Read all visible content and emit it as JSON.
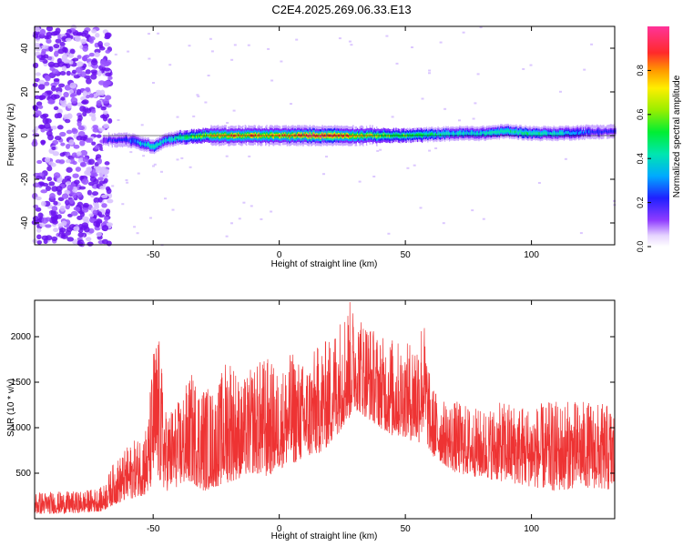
{
  "page_title": "C2E4.2025.269.06.33.E13",
  "chart_data": [
    {
      "type": "heatmap",
      "name": "spectrogram",
      "xlabel": "Height of straight line (km)",
      "ylabel": "Frequency (Hz)",
      "xlim": [
        -97,
        133
      ],
      "ylim": [
        -50,
        50
      ],
      "x_ticks": [
        -50,
        0,
        50,
        100
      ],
      "y_ticks": [
        -40,
        -20,
        0,
        20,
        40
      ],
      "colorbar": {
        "label": "Normalized spectral amplitude",
        "range": [
          0,
          1
        ],
        "ticks": [
          "0.0",
          "0.2",
          "0.4",
          "0.6",
          "0.8"
        ]
      },
      "ridge": {
        "description_free": true,
        "x": [
          -70,
          -60,
          -50,
          -45,
          -40,
          -30,
          -20,
          -10,
          0,
          10,
          20,
          30,
          40,
          50,
          60,
          70,
          80,
          90,
          100,
          110,
          120,
          133
        ],
        "freq": [
          -2,
          -2,
          -5,
          -2,
          -1,
          0,
          0,
          0,
          0,
          0,
          0,
          0,
          0,
          0,
          0.5,
          1,
          1,
          2,
          1,
          1,
          1.5,
          2
        ],
        "amplitude": [
          0.3,
          0.4,
          0.6,
          0.5,
          0.6,
          0.8,
          0.9,
          0.9,
          0.9,
          1.0,
          1.0,
          0.85,
          0.75,
          0.7,
          0.6,
          0.55,
          0.55,
          0.6,
          0.6,
          0.55,
          0.4,
          0.35
        ]
      }
    },
    {
      "type": "line",
      "name": "snr",
      "xlabel": "Height of straight line (km)",
      "ylabel": "SNR (10 * v/v)",
      "xlim": [
        -97,
        133
      ],
      "ylim": [
        0,
        2400
      ],
      "x_ticks": [
        -50,
        0,
        50,
        100
      ],
      "y_ticks": [
        500,
        1000,
        1500,
        2000
      ],
      "color": "#ee3333",
      "envelope": {
        "x": [
          -97,
          -80,
          -70,
          -66,
          -60,
          -56,
          -52,
          -50,
          -48,
          -45,
          -40,
          -35,
          -30,
          -25,
          -20,
          -15,
          -10,
          -5,
          0,
          5,
          10,
          15,
          20,
          25,
          28,
          30,
          35,
          40,
          45,
          50,
          55,
          57,
          60,
          65,
          70,
          80,
          90,
          100,
          110,
          120,
          133
        ],
        "low": [
          50,
          60,
          80,
          150,
          200,
          250,
          250,
          400,
          400,
          300,
          350,
          400,
          300,
          350,
          400,
          450,
          500,
          450,
          550,
          600,
          650,
          700,
          800,
          1000,
          1100,
          1200,
          1100,
          1000,
          900,
          900,
          800,
          950,
          700,
          600,
          500,
          450,
          400,
          350,
          300,
          350,
          300
        ],
        "high": [
          300,
          300,
          350,
          600,
          800,
          900,
          1100,
          1900,
          2100,
          1200,
          1300,
          1600,
          1500,
          1400,
          1900,
          1500,
          1700,
          1800,
          1600,
          1850,
          1700,
          1900,
          2000,
          2300,
          2400,
          2300,
          2200,
          2000,
          2000,
          1900,
          2100,
          2300,
          1500,
          1300,
          1300,
          1200,
          1300,
          1250,
          1300,
          1300,
          1250
        ]
      }
    }
  ]
}
